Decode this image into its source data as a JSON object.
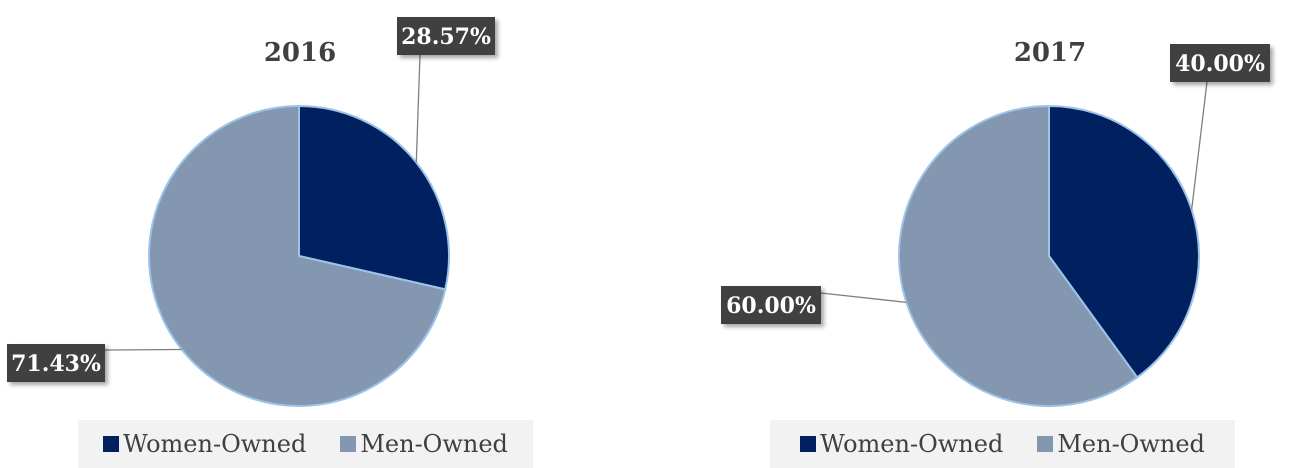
{
  "chart_data": [
    {
      "type": "pie",
      "title": "2016",
      "series": [
        {
          "name": "Women-Owned",
          "value": 28.57,
          "label": "28.57%",
          "color": "#002060"
        },
        {
          "name": "Men-Owned",
          "value": 71.43,
          "label": "71.43%",
          "color": "#8497B0"
        }
      ],
      "legend_position": "bottom"
    },
    {
      "type": "pie",
      "title": "2017",
      "series": [
        {
          "name": "Women-Owned",
          "value": 40.0,
          "label": "40.00%",
          "color": "#002060"
        },
        {
          "name": "Men-Owned",
          "value": 60.0,
          "label": "60.00%",
          "color": "#8497B0"
        }
      ],
      "legend_position": "bottom"
    }
  ]
}
